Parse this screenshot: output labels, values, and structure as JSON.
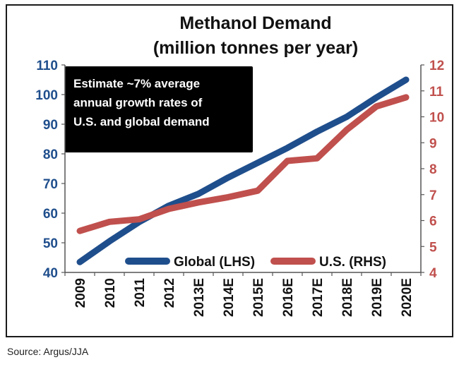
{
  "source": "Source: Argus/JJA",
  "chart_data": {
    "type": "line",
    "title": "Methanol Demand",
    "subtitle": "(million tonnes per year)",
    "annotation": "Estimate ~7% average annual growth rates of U.S. and global demand",
    "annotation_lines": [
      "Estimate ~7% average",
      "annual growth rates of",
      "U.S. and global demand"
    ],
    "categories": [
      "2009",
      "2010",
      "2011",
      "2012",
      "2013E",
      "2014E",
      "2015E",
      "2016E",
      "2017E",
      "2018E",
      "2019E",
      "2020E"
    ],
    "left_axis": {
      "ylim": [
        40,
        110
      ],
      "ticks": [
        40,
        50,
        60,
        70,
        80,
        90,
        100,
        110
      ],
      "color": "#1f4e8c"
    },
    "right_axis": {
      "ylim": [
        4,
        12
      ],
      "ticks": [
        4,
        5,
        6,
        7,
        8,
        9,
        10,
        11,
        12
      ],
      "color": "#c0504d"
    },
    "series": [
      {
        "name": "Global (LHS)",
        "axis": "left",
        "color": "#1f4e8c",
        "values": [
          43.5,
          50.5,
          57,
          62.5,
          66.5,
          72,
          77,
          82,
          87.5,
          92.5,
          99,
          105
        ]
      },
      {
        "name": "U.S. (RHS)",
        "axis": "right",
        "color": "#c0504d",
        "values": [
          5.6,
          5.95,
          6.05,
          6.45,
          6.7,
          6.9,
          7.15,
          8.3,
          8.4,
          9.5,
          10.4,
          10.75
        ]
      }
    ],
    "legend_position": "bottom-center",
    "grid": false
  }
}
